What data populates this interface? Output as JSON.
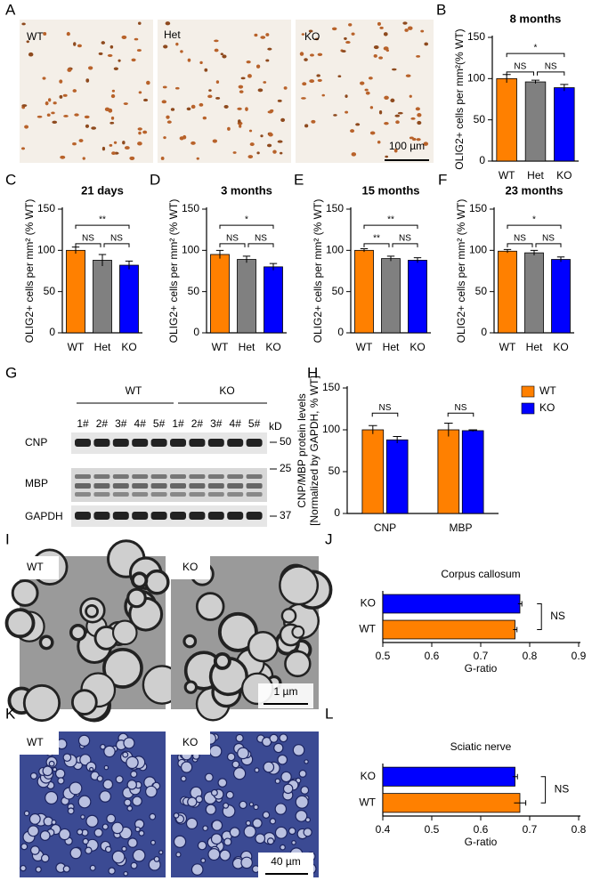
{
  "panel_labels": [
    "A",
    "B",
    "C",
    "D",
    "E",
    "F",
    "G",
    "H",
    "I",
    "J",
    "K",
    "L"
  ],
  "panel_a": {
    "labels": [
      "WT",
      "Het",
      "KO"
    ],
    "scale_bar": "100 µm"
  },
  "panel_g": {
    "groups": [
      "WT",
      "KO"
    ],
    "lanes": [
      "1#",
      "2#",
      "3#",
      "4#",
      "5#",
      "1#",
      "2#",
      "3#",
      "4#",
      "5#"
    ],
    "bands": [
      "CNP",
      "MBP",
      "GAPDH"
    ],
    "unit": "kD",
    "markers": [
      50,
      25,
      37
    ]
  },
  "panel_i": {
    "labels": [
      "WT",
      "KO"
    ],
    "scale_bar": "1 µm"
  },
  "panel_k": {
    "labels": [
      "WT",
      "KO"
    ],
    "scale_bar": "40 µm"
  },
  "chart_data": [
    {
      "type": "bar",
      "title": "8 months",
      "y_label": "OLIG2+ cells per mm²(% WT)",
      "categories": [
        "WT",
        "Het",
        "KO"
      ],
      "values": [
        100,
        96,
        89
      ],
      "errors": [
        5,
        2,
        4
      ],
      "colors": [
        "#ff8000",
        "#808080",
        "#0000ff"
      ],
      "ylim": [
        0,
        150
      ],
      "yticks": [
        0,
        50,
        100,
        150
      ],
      "annotations": [
        "NS",
        "NS",
        "*"
      ]
    },
    {
      "type": "bar",
      "title": "21 days",
      "y_label": "OLIG2+ cells per mm² (% WT)",
      "categories": [
        "WT",
        "Het",
        "KO"
      ],
      "values": [
        100,
        88,
        82
      ],
      "errors": [
        4,
        7,
        5
      ],
      "colors": [
        "#ff8000",
        "#808080",
        "#0000ff"
      ],
      "ylim": [
        0,
        150
      ],
      "yticks": [
        0,
        50,
        100,
        150
      ],
      "annotations": [
        "NS",
        "NS",
        "**"
      ]
    },
    {
      "type": "bar",
      "title": "3 months",
      "y_label": "OLIG2+ cells per mm² (% WT)",
      "categories": [
        "WT",
        "Het",
        "KO"
      ],
      "values": [
        95,
        89,
        80
      ],
      "errors": [
        5,
        4,
        4
      ],
      "colors": [
        "#ff8000",
        "#808080",
        "#0000ff"
      ],
      "ylim": [
        0,
        150
      ],
      "yticks": [
        0,
        50,
        100,
        150
      ],
      "annotations": [
        "NS",
        "NS",
        "*"
      ]
    },
    {
      "type": "bar",
      "title": "15 months",
      "y_label": "OLIG2+ cells per mm² (% WT)",
      "categories": [
        "WT",
        "Het",
        "KO"
      ],
      "values": [
        100,
        90,
        88
      ],
      "errors": [
        2,
        3,
        3
      ],
      "colors": [
        "#ff8000",
        "#808080",
        "#0000ff"
      ],
      "ylim": [
        0,
        150
      ],
      "yticks": [
        0,
        50,
        100,
        150
      ],
      "annotations": [
        "**",
        "NS",
        "**"
      ]
    },
    {
      "type": "bar",
      "title": "23 months",
      "y_label": "OLIG2+ cells per mm² (% WT)",
      "categories": [
        "WT",
        "Het",
        "KO"
      ],
      "values": [
        99,
        97,
        89
      ],
      "errors": [
        2,
        3,
        3
      ],
      "colors": [
        "#ff8000",
        "#808080",
        "#0000ff"
      ],
      "ylim": [
        0,
        150
      ],
      "yticks": [
        0,
        50,
        100,
        150
      ],
      "annotations": [
        "NS",
        "NS",
        "*"
      ]
    },
    {
      "type": "bar",
      "y_label": [
        "CNP/MBP protein levels",
        "[Normalized by GAPDH, % WT]"
      ],
      "categories": [
        "CNP",
        "MBP"
      ],
      "series": [
        {
          "name": "WT",
          "color": "#ff8000",
          "values": [
            100,
            100
          ],
          "errors": [
            5,
            8
          ]
        },
        {
          "name": "KO",
          "color": "#0000ff",
          "values": [
            88,
            99
          ],
          "errors": [
            4,
            1
          ]
        }
      ],
      "ylim": [
        0,
        150
      ],
      "yticks": [
        0,
        50,
        100,
        150
      ],
      "annotations": [
        "NS",
        "NS"
      ],
      "legend": "top-right"
    },
    {
      "type": "barh",
      "title": "Corpus callosum",
      "x_label": "G-ratio",
      "categories": [
        "KO",
        "WT"
      ],
      "values": [
        0.78,
        0.77
      ],
      "errors": [
        0.004,
        0.004
      ],
      "colors": [
        "#0000ff",
        "#ff8000"
      ],
      "xlim": [
        0.5,
        0.9
      ],
      "xticks": [
        0.5,
        0.6,
        0.7,
        0.8,
        0.9
      ],
      "annotations": [
        "NS"
      ]
    },
    {
      "type": "barh",
      "title": "Sciatic nerve",
      "x_label": "G-ratio",
      "categories": [
        "KO",
        "WT"
      ],
      "values": [
        0.67,
        0.68
      ],
      "errors": [
        0.005,
        0.012
      ],
      "colors": [
        "#0000ff",
        "#ff8000"
      ],
      "xlim": [
        0.4,
        0.8
      ],
      "xticks": [
        0.4,
        0.5,
        0.6,
        0.7,
        0.8
      ],
      "annotations": [
        "NS"
      ]
    }
  ]
}
